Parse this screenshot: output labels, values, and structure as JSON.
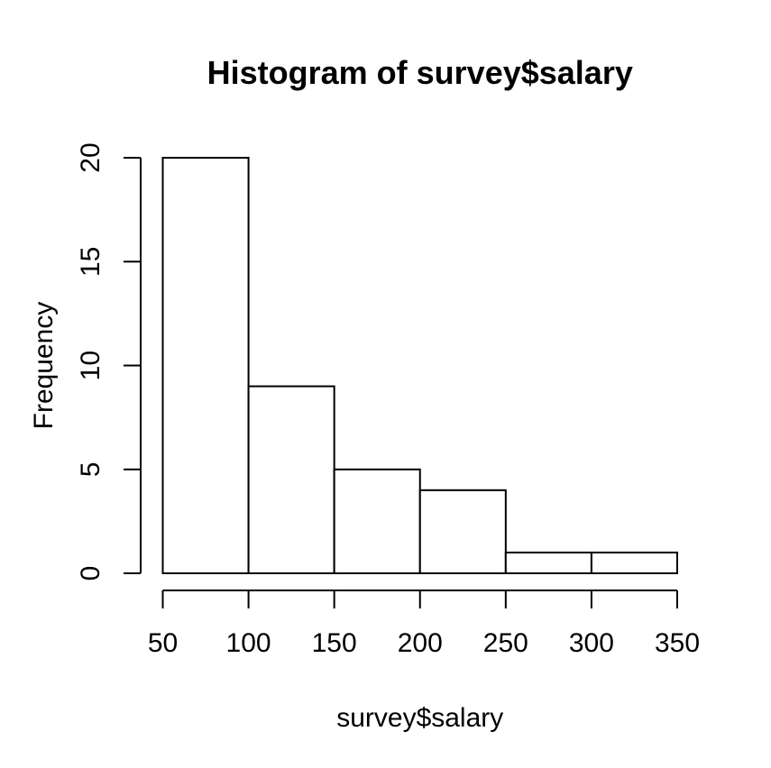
{
  "chart_data": {
    "type": "bar",
    "subtype": "histogram",
    "title": "Histogram of survey$salary",
    "xlabel": "survey$salary",
    "ylabel": "Frequency",
    "bin_edges": [
      50,
      100,
      150,
      200,
      250,
      300,
      350
    ],
    "counts": [
      20,
      9,
      5,
      4,
      1,
      1
    ],
    "x_tick_labels": [
      "50",
      "100",
      "150",
      "200",
      "250",
      "300",
      "350"
    ],
    "x_tick_values": [
      50,
      100,
      150,
      200,
      250,
      300,
      350
    ],
    "y_tick_labels": [
      "0",
      "5",
      "10",
      "15",
      "20"
    ],
    "y_tick_values": [
      0,
      5,
      10,
      15,
      20
    ],
    "xlim": [
      50,
      350
    ],
    "ylim": [
      0,
      20
    ],
    "grid": false,
    "legend": "none",
    "bar_fill": "#ffffff",
    "axis_color": "#000000",
    "background": "#ffffff"
  }
}
